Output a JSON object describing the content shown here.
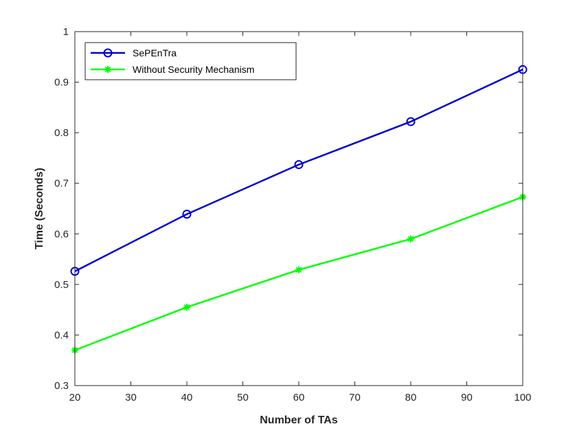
{
  "chart_data": {
    "type": "line",
    "title": "",
    "xlabel": "Number of TAs",
    "ylabel": "Time (Seconds)",
    "xlim": [
      20,
      100
    ],
    "ylim": [
      0.3,
      1
    ],
    "xticks": [
      20,
      30,
      40,
      50,
      60,
      70,
      80,
      90,
      100
    ],
    "yticks": [
      0.3,
      0.4,
      0.5,
      0.6,
      0.7,
      0.8,
      0.9,
      1
    ],
    "x": [
      20,
      40,
      60,
      80,
      100
    ],
    "grid": false,
    "legend_position": "top-left",
    "series": [
      {
        "name": "SePEnTra",
        "values": [
          0.526,
          0.639,
          0.737,
          0.822,
          0.925
        ],
        "color": "#0000cc",
        "marker": "circle"
      },
      {
        "name": "Without Security Mechanism",
        "values": [
          0.37,
          0.455,
          0.529,
          0.59,
          0.673
        ],
        "color": "#00ff00",
        "marker": "asterisk"
      }
    ]
  }
}
